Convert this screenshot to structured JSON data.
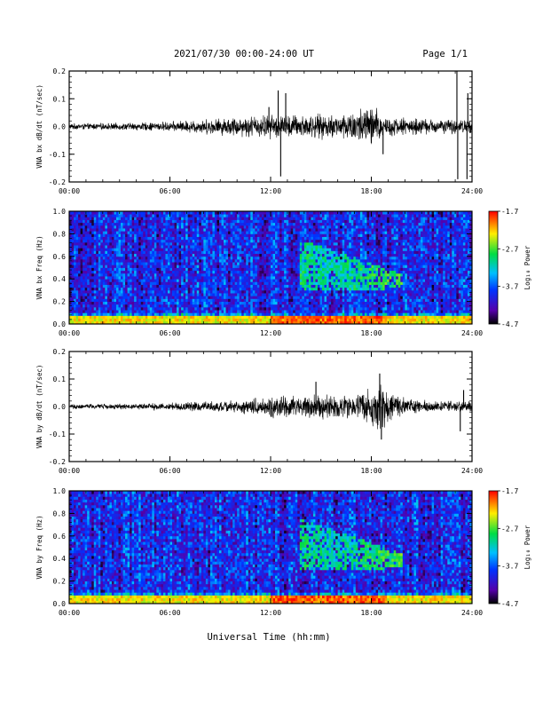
{
  "header": {
    "date_range": "2021/07/30  00:00-24:00 UT",
    "page": "Page 1/1"
  },
  "xlabel": "Universal Time (hh:mm)",
  "chart_data": [
    {
      "type": "line",
      "ylabel": "VNA bx dB/dt (nT/sec)",
      "xlim": [
        0,
        24
      ],
      "ylim": [
        -0.2,
        0.2
      ],
      "x_ticks": [
        "00:00",
        "06:00",
        "12:00",
        "18:00",
        "24:00"
      ],
      "y_ticks": [
        "-0.2",
        "-0.1",
        "0.0",
        "0.1",
        "0.2"
      ],
      "envelope": [
        {
          "x": 0,
          "amp": 0.012
        },
        {
          "x": 3,
          "amp": 0.014
        },
        {
          "x": 6,
          "amp": 0.02
        },
        {
          "x": 8,
          "amp": 0.03
        },
        {
          "x": 10,
          "amp": 0.04
        },
        {
          "x": 12,
          "amp": 0.05
        },
        {
          "x": 13,
          "amp": 0.05
        },
        {
          "x": 14,
          "amp": 0.05
        },
        {
          "x": 16,
          "amp": 0.05
        },
        {
          "x": 18,
          "amp": 0.09
        },
        {
          "x": 19,
          "amp": 0.04
        },
        {
          "x": 22,
          "amp": 0.03
        },
        {
          "x": 24,
          "amp": 0.03
        }
      ],
      "spikes": [
        {
          "x": 11.9,
          "y": 0.07
        },
        {
          "x": 12.45,
          "y": 0.13
        },
        {
          "x": 12.6,
          "y": -0.18
        },
        {
          "x": 12.9,
          "y": 0.12
        },
        {
          "x": 18.7,
          "y": -0.1
        },
        {
          "x": 23.1,
          "y": 0.2
        },
        {
          "x": 23.15,
          "y": -0.19
        },
        {
          "x": 23.7,
          "y": -0.19
        },
        {
          "x": 23.75,
          "y": 0.12
        }
      ]
    },
    {
      "type": "heatmap",
      "ylabel": "VNA bx Freq (Hz)",
      "xlim": [
        0,
        24
      ],
      "ylim": [
        0,
        1.0
      ],
      "x_ticks": [
        "00:00",
        "06:00",
        "12:00",
        "18:00",
        "24:00"
      ],
      "y_ticks": [
        "0.0",
        "0.2",
        "0.4",
        "0.6",
        "0.8",
        "1.0"
      ],
      "colorbar": {
        "label": "Log₁₀ Power",
        "range": [
          -4.7,
          -1.7
        ],
        "ticks": [
          "-1.7",
          "-2.7",
          "-3.7",
          "-4.7"
        ]
      },
      "features": [
        {
          "name": "low-frequency band",
          "freq": [
            0,
            0.05
          ],
          "time": [
            0,
            24
          ],
          "log_power": -2.0
        },
        {
          "name": "pc1 emission",
          "time": [
            13.8,
            19.8
          ],
          "freq": [
            0.3,
            0.75
          ],
          "log_power": -2.7
        }
      ]
    },
    {
      "type": "line",
      "ylabel": "VNA by dB/dt (nT/sec)",
      "xlim": [
        0,
        24
      ],
      "ylim": [
        -0.2,
        0.2
      ],
      "x_ticks": [
        "00:00",
        "06:00",
        "12:00",
        "18:00",
        "24:00"
      ],
      "y_ticks": [
        "-0.2",
        "-0.1",
        "0.0",
        "0.1",
        "0.2"
      ],
      "envelope": [
        {
          "x": 0,
          "amp": 0.01
        },
        {
          "x": 4,
          "amp": 0.012
        },
        {
          "x": 7,
          "amp": 0.018
        },
        {
          "x": 10,
          "amp": 0.025
        },
        {
          "x": 12,
          "amp": 0.045
        },
        {
          "x": 14,
          "amp": 0.045
        },
        {
          "x": 15,
          "amp": 0.05
        },
        {
          "x": 17,
          "amp": 0.05
        },
        {
          "x": 18.5,
          "amp": 0.095
        },
        {
          "x": 19.5,
          "amp": 0.04
        },
        {
          "x": 22,
          "amp": 0.02
        },
        {
          "x": 24,
          "amp": 0.025
        }
      ],
      "spikes": [
        {
          "x": 14.7,
          "y": 0.09
        },
        {
          "x": 18.5,
          "y": 0.12
        },
        {
          "x": 18.6,
          "y": -0.12
        },
        {
          "x": 23.3,
          "y": -0.09
        },
        {
          "x": 23.5,
          "y": 0.06
        }
      ]
    },
    {
      "type": "heatmap",
      "ylabel": "VNA by Freq (Hz)",
      "xlim": [
        0,
        24
      ],
      "ylim": [
        0,
        1.0
      ],
      "x_ticks": [
        "00:00",
        "06:00",
        "12:00",
        "18:00",
        "24:00"
      ],
      "y_ticks": [
        "0.0",
        "0.2",
        "0.4",
        "0.6",
        "0.8",
        "1.0"
      ],
      "colorbar": {
        "label": "Log₁₀ Power",
        "range": [
          -4.7,
          -1.7
        ],
        "ticks": [
          "-1.7",
          "-2.7",
          "-3.7",
          "-4.7"
        ]
      },
      "features": [
        {
          "name": "low-frequency band",
          "freq": [
            0,
            0.05
          ],
          "time": [
            0,
            24
          ],
          "log_power": -2.0
        },
        {
          "name": "pc1 emission",
          "time": [
            13.8,
            19.8
          ],
          "freq": [
            0.3,
            0.75
          ],
          "log_power": -2.7
        }
      ]
    }
  ]
}
